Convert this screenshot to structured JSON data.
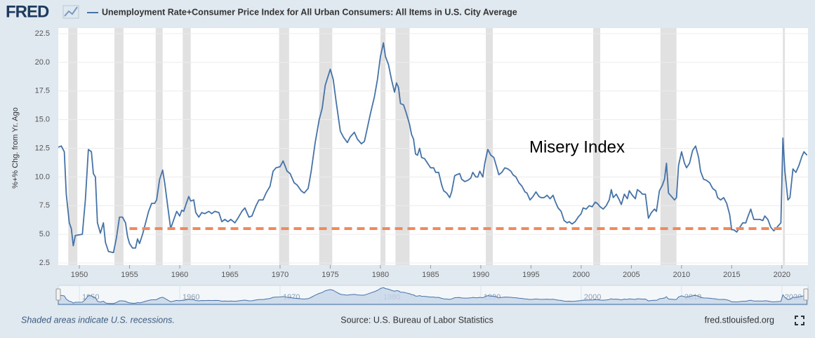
{
  "page": {
    "logo": "FRED",
    "note": "Shaded areas indicate U.S. recessions.",
    "source": "Source: U.S. Bureau of Labor Statistics",
    "site": "fred.stlouisfed.org"
  },
  "chart_data": {
    "type": "line",
    "y_label": "%+% Chg. from Yr. Ago",
    "annotation": "Misery Index",
    "x": [
      1947.9,
      1948.2,
      1948.5,
      1948.7,
      1949.0,
      1949.2,
      1949.4,
      1949.6,
      1950.3,
      1950.6,
      1950.9,
      1951.2,
      1951.4,
      1951.6,
      1951.8,
      1952.1,
      1952.4,
      1952.6,
      1952.9,
      1953.4,
      1953.7,
      1954.0,
      1954.3,
      1954.6,
      1954.8,
      1955.0,
      1955.3,
      1955.6,
      1955.8,
      1956.0,
      1956.3,
      1956.6,
      1956.9,
      1957.2,
      1957.5,
      1957.7,
      1958.0,
      1958.3,
      1958.5,
      1958.8,
      1959.1,
      1959.5,
      1959.7,
      1960.0,
      1960.2,
      1960.4,
      1960.7,
      1960.9,
      1961.1,
      1961.4,
      1961.6,
      1961.9,
      1962.2,
      1962.5,
      1962.9,
      1963.2,
      1963.5,
      1963.9,
      1964.2,
      1964.5,
      1964.8,
      1965.1,
      1965.5,
      1965.8,
      1966.2,
      1966.5,
      1966.9,
      1967.2,
      1967.6,
      1967.9,
      1968.3,
      1968.6,
      1969.0,
      1969.3,
      1969.6,
      1970.0,
      1970.3,
      1970.7,
      1971.0,
      1971.4,
      1971.7,
      1972.1,
      1972.4,
      1972.8,
      1973.1,
      1973.5,
      1973.9,
      1974.2,
      1974.5,
      1975.0,
      1975.3,
      1975.6,
      1976.0,
      1976.3,
      1976.7,
      1977.0,
      1977.4,
      1977.7,
      1978.1,
      1978.4,
      1978.7,
      1979.0,
      1979.4,
      1979.7,
      1980.0,
      1980.3,
      1980.5,
      1980.8,
      1981.1,
      1981.4,
      1981.6,
      1981.8,
      1982.0,
      1982.3,
      1982.6,
      1982.9,
      1983.1,
      1983.3,
      1983.5,
      1983.7,
      1983.9,
      1984.1,
      1984.4,
      1984.7,
      1985.0,
      1985.3,
      1985.5,
      1985.8,
      1986.1,
      1986.3,
      1986.6,
      1986.9,
      1987.1,
      1987.4,
      1987.6,
      1987.9,
      1988.1,
      1988.4,
      1988.7,
      1989.0,
      1989.2,
      1989.5,
      1989.7,
      1989.9,
      1990.2,
      1990.4,
      1990.7,
      1991.0,
      1991.3,
      1991.6,
      1991.8,
      1992.1,
      1992.4,
      1992.7,
      1993.0,
      1993.2,
      1993.5,
      1993.8,
      1994.1,
      1994.4,
      1994.6,
      1994.9,
      1995.2,
      1995.5,
      1995.8,
      1996.0,
      1996.3,
      1996.6,
      1996.9,
      1997.2,
      1997.4,
      1997.7,
      1998.0,
      1998.3,
      1998.6,
      1998.8,
      1999.1,
      1999.4,
      1999.7,
      2000.0,
      2000.2,
      2000.5,
      2000.8,
      2001.1,
      2001.4,
      2001.6,
      2001.9,
      2002.2,
      2002.5,
      2002.8,
      2003.0,
      2003.2,
      2003.5,
      2003.8,
      2004.0,
      2004.3,
      2004.6,
      2004.8,
      2005.1,
      2005.4,
      2005.6,
      2005.9,
      2006.1,
      2006.4,
      2006.7,
      2007.0,
      2007.3,
      2007.5,
      2007.8,
      2008.1,
      2008.3,
      2008.5,
      2008.7,
      2009.0,
      2009.3,
      2009.5,
      2009.7,
      2010.0,
      2010.3,
      2010.5,
      2010.8,
      2011.1,
      2011.4,
      2011.7,
      2011.9,
      2012.2,
      2012.5,
      2012.8,
      2013.1,
      2013.4,
      2013.6,
      2013.9,
      2014.2,
      2014.5,
      2014.8,
      2015.0,
      2015.2,
      2015.5,
      2015.8,
      2016.1,
      2016.4,
      2016.6,
      2016.9,
      2017.2,
      2017.5,
      2017.8,
      2018.1,
      2018.3,
      2018.6,
      2018.9,
      2019.2,
      2019.5,
      2019.7,
      2019.9,
      2020.1,
      2020.3,
      2020.6,
      2020.8,
      2021.1,
      2021.4,
      2021.7,
      2022.0,
      2022.2,
      2022.5
    ],
    "series": [
      {
        "name": "Unemployment Rate+Consumer Price Index for All Urban Consumers: All Items in U.S. City Average",
        "color": "#4572a7",
        "values": [
          12.6,
          12.7,
          12.2,
          8.5,
          6.0,
          5.5,
          4.0,
          4.9,
          5.0,
          8.0,
          12.4,
          12.2,
          10.3,
          10.0,
          6.0,
          5.1,
          6.0,
          4.3,
          3.5,
          3.4,
          4.7,
          6.5,
          6.5,
          6.0,
          4.8,
          4.2,
          3.8,
          3.8,
          4.6,
          4.2,
          5.0,
          6.0,
          7.0,
          7.7,
          7.7,
          8.0,
          9.8,
          10.6,
          9.5,
          7.5,
          5.5,
          6.5,
          7.0,
          6.6,
          7.1,
          7.0,
          7.8,
          8.3,
          7.9,
          8.0,
          6.9,
          6.5,
          6.9,
          6.8,
          7.0,
          6.8,
          7.0,
          6.9,
          6.1,
          6.3,
          6.1,
          6.3,
          6.0,
          6.4,
          7.0,
          7.3,
          6.5,
          6.6,
          7.5,
          8.0,
          8.0,
          8.6,
          9.2,
          10.5,
          10.8,
          10.9,
          11.4,
          10.5,
          10.3,
          9.5,
          9.3,
          8.8,
          8.6,
          9.0,
          10.5,
          13.0,
          15.0,
          16.0,
          18.0,
          19.4,
          18.5,
          16.5,
          14.0,
          13.5,
          13.0,
          13.5,
          13.9,
          13.3,
          12.9,
          13.1,
          14.3,
          15.5,
          17.0,
          18.5,
          20.5,
          21.7,
          20.5,
          19.8,
          18.5,
          17.4,
          18.2,
          17.8,
          16.4,
          16.3,
          15.5,
          14.6,
          13.7,
          13.3,
          12.0,
          11.9,
          12.5,
          11.7,
          11.6,
          11.2,
          10.8,
          10.8,
          10.4,
          10.4,
          9.3,
          8.8,
          8.6,
          8.2,
          8.7,
          10.1,
          10.2,
          10.3,
          9.8,
          9.6,
          9.7,
          9.9,
          10.4,
          10.0,
          10.0,
          10.5,
          10.0,
          11.2,
          12.4,
          11.9,
          11.7,
          10.8,
          10.2,
          10.4,
          10.8,
          10.7,
          10.5,
          10.2,
          10.0,
          9.5,
          9.2,
          8.7,
          8.6,
          8.0,
          8.3,
          8.7,
          8.3,
          8.2,
          8.2,
          8.4,
          8.1,
          8.4,
          7.9,
          7.3,
          7.0,
          6.2,
          6.0,
          6.1,
          5.9,
          6.1,
          6.5,
          6.8,
          7.3,
          7.2,
          7.5,
          7.4,
          7.8,
          7.7,
          7.4,
          7.2,
          7.5,
          8.0,
          8.9,
          8.2,
          8.5,
          8.0,
          7.6,
          8.5,
          8.1,
          8.8,
          8.4,
          8.1,
          8.9,
          8.7,
          8.5,
          8.5,
          6.4,
          6.9,
          7.2,
          7.0,
          8.8,
          9.3,
          9.8,
          11.2,
          8.6,
          8.3,
          8.0,
          8.2,
          11.0,
          12.2,
          11.2,
          10.8,
          11.2,
          12.3,
          12.7,
          11.7,
          10.5,
          9.8,
          9.7,
          9.5,
          9.0,
          8.8,
          8.2,
          8.0,
          8.2,
          7.7,
          6.7,
          5.4,
          5.4,
          5.2,
          5.6,
          6.0,
          6.0,
          6.5,
          7.2,
          6.3,
          6.3,
          6.3,
          6.2,
          6.6,
          6.3,
          5.6,
          5.3,
          5.6,
          5.8,
          6.0,
          13.4,
          10.5,
          8.0,
          8.2,
          10.7,
          10.4,
          11.0,
          11.8,
          12.2,
          11.9
        ]
      }
    ],
    "xlim": [
      1947.9,
      2022.6
    ],
    "xticks": [
      1950,
      1955,
      1960,
      1965,
      1970,
      1975,
      1980,
      1985,
      1990,
      1995,
      2000,
      2005,
      2010,
      2015,
      2020
    ],
    "ylim": [
      2.5,
      22.5
    ],
    "yticks": [
      2.5,
      {
        "value": 5,
        "label": "5.0"
      },
      7.5,
      {
        "value": 10,
        "label": "10.0"
      },
      12.5,
      {
        "value": 15,
        "label": "15.0"
      },
      17.5,
      {
        "value": 20,
        "label": "20.0"
      },
      22.5
    ],
    "grid": true,
    "recession_color": "#e1e1e1",
    "recessions": [
      [
        1948.9,
        1949.8
      ],
      [
        1953.5,
        1954.4
      ],
      [
        1957.6,
        1958.3
      ],
      [
        1960.3,
        1961.1
      ],
      [
        1969.9,
        1970.9
      ],
      [
        1973.9,
        1975.2
      ],
      [
        1980.0,
        1980.5
      ],
      [
        1981.5,
        1982.9
      ],
      [
        1990.5,
        1991.2
      ],
      [
        2001.2,
        2001.9
      ],
      [
        2007.9,
        2009.5
      ],
      [
        2020.1,
        2020.3
      ]
    ],
    "reference_line": {
      "value": 5.5,
      "start": 1955,
      "end": 2020,
      "color": "#f08a5d"
    },
    "navigator_ticks": [
      1950,
      1960,
      1970,
      1980,
      1990,
      2000,
      2010,
      2020
    ]
  }
}
